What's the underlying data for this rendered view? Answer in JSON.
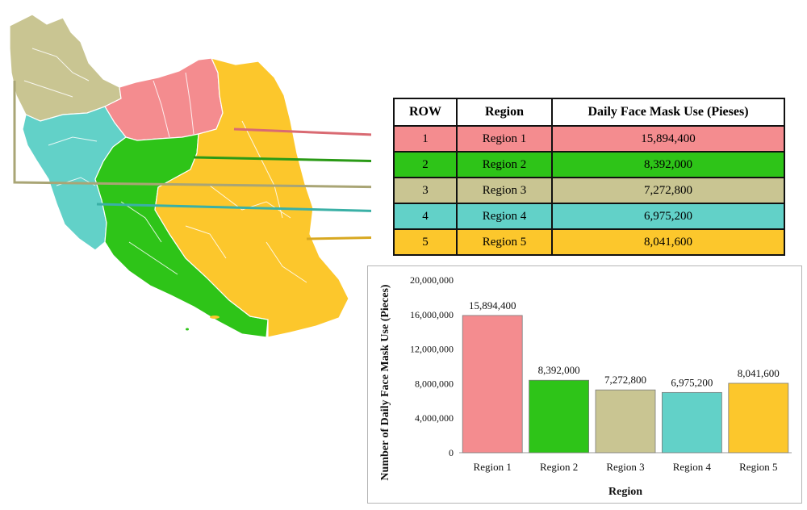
{
  "colors": {
    "region1": "#f48c8f",
    "region2": "#2ec418",
    "region3": "#c9c592",
    "region4": "#62d1c8",
    "region5": "#fcc72c"
  },
  "table": {
    "headers": [
      "ROW",
      "Region",
      "Daily Face Mask Use (Pieses)"
    ],
    "rows": [
      {
        "row": "1",
        "region": "Region 1",
        "value": "15,894,400",
        "color_key": "region1"
      },
      {
        "row": "2",
        "region": "Region 2",
        "value": "8,392,000",
        "color_key": "region2"
      },
      {
        "row": "3",
        "region": "Region 3",
        "value": "7,272,800",
        "color_key": "region3"
      },
      {
        "row": "4",
        "region": "Region 4",
        "value": "6,975,200",
        "color_key": "region4"
      },
      {
        "row": "5",
        "region": "Region 5",
        "value": "8,041,600",
        "color_key": "region5"
      }
    ]
  },
  "chart_data": {
    "type": "bar",
    "categories": [
      "Region 1",
      "Region 2",
      "Region 3",
      "Region 4",
      "Region 5"
    ],
    "values": [
      15894400,
      8392000,
      7272800,
      6975200,
      8041600
    ],
    "data_labels": [
      "15,894,400",
      "8,392,000",
      "7,272,800",
      "6,975,200",
      "8,041,600"
    ],
    "bar_colors": [
      "#f48c8f",
      "#2ec418",
      "#c9c592",
      "#62d1c8",
      "#fcc72c"
    ],
    "title": "",
    "xlabel": "Region",
    "ylabel": "Number of Daily Face Mask Use (Pieces)",
    "ylim": [
      0,
      20000000
    ],
    "y_ticks": [
      0,
      4000000,
      8000000,
      12000000,
      16000000,
      20000000
    ],
    "y_tick_labels": [
      "0",
      "4,000,000",
      "8,000,000",
      "12,000,000",
      "16,000,000",
      "20,000,000"
    ],
    "grid": false,
    "legend": "none"
  }
}
